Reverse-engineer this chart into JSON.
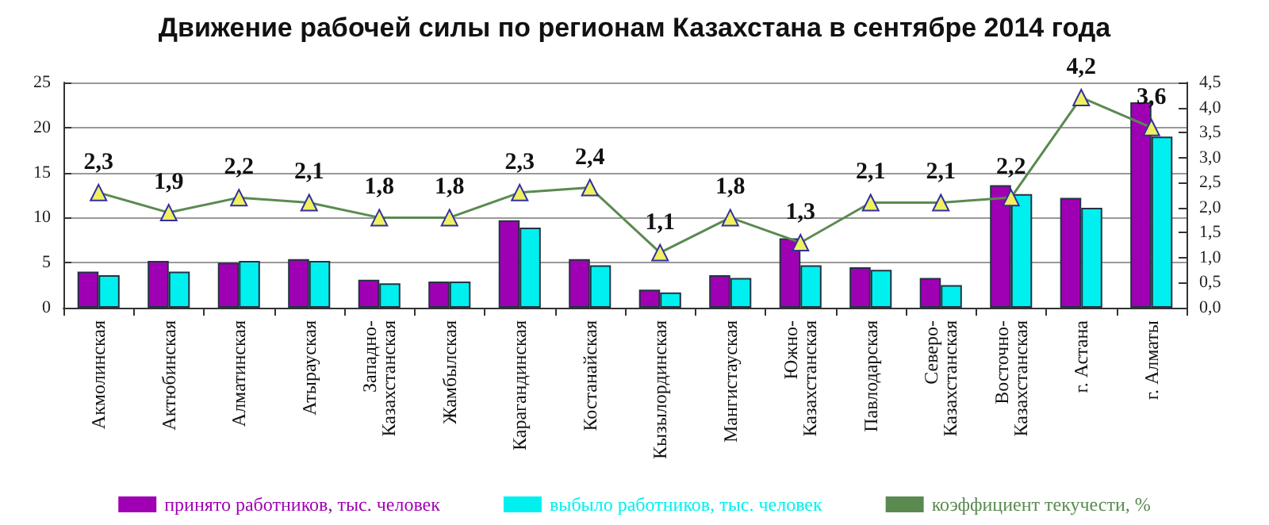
{
  "chart_data": {
    "type": "bar",
    "title": "Движение рабочей силы по регионам Казахстана в сентябре 2014 года",
    "categories": [
      "Акмолинская",
      "Актюбинская",
      "Алматинская",
      "Атырауская",
      "Западно-Казахстанская",
      "Жамбылская",
      "Карагандинская",
      "Костанайская",
      "Кызылординская",
      "Мангистауская",
      "Южно-Казахстанская",
      "Павлодарская",
      "Северо-Казахстанская",
      "Восточно-Казахстанская",
      "г. Астана",
      "г. Алматы"
    ],
    "series": [
      {
        "name": "принято работников, тыс. человек",
        "color": "#a000b4",
        "values": [
          4.0,
          5.2,
          5.0,
          5.4,
          3.1,
          2.9,
          9.7,
          5.4,
          2.0,
          3.6,
          7.7,
          4.5,
          3.3,
          13.6,
          12.2,
          22.8
        ]
      },
      {
        "name": "выбыло работников, тыс. человек",
        "color": "#00f0f0",
        "values": [
          3.6,
          4.0,
          5.2,
          5.2,
          2.7,
          2.9,
          8.9,
          4.7,
          1.7,
          3.3,
          4.7,
          4.2,
          2.5,
          12.6,
          11.1,
          19.0
        ]
      },
      {
        "name": "коэффициент текучести, %",
        "type": "line",
        "axis": "y2",
        "color": "#5a8a50",
        "marker": "triangle",
        "values": [
          2.3,
          1.9,
          2.2,
          2.1,
          1.8,
          1.8,
          2.3,
          2.4,
          1.1,
          1.8,
          1.3,
          2.1,
          2.1,
          2.2,
          4.2,
          3.6
        ],
        "value_labels": [
          "2,3",
          "1,9",
          "2,2",
          "2,1",
          "1,8",
          "1,8",
          "2,3",
          "2,4",
          "1,1",
          "1,8",
          "1,3",
          "2,1",
          "2,1",
          "2,2",
          "4,2",
          "3,6"
        ]
      }
    ],
    "ylim": [
      0,
      25
    ],
    "yticks": [
      0,
      5,
      10,
      15,
      20,
      25
    ],
    "y2lim": [
      0,
      4.5
    ],
    "y2ticks": [
      {
        "value": 0,
        "label": "0,0"
      },
      {
        "value": 0.5,
        "label": "0,5"
      },
      {
        "value": 1,
        "label": "1,0"
      },
      {
        "value": 1.5,
        "label": "1,5"
      },
      {
        "value": 2,
        "label": "2,0"
      },
      {
        "value": 2.5,
        "label": "2,5"
      },
      {
        "value": 3,
        "label": "3,0"
      },
      {
        "value": 3.5,
        "label": "3,5"
      },
      {
        "value": 4,
        "label": "4,0"
      },
      {
        "value": 4.5,
        "label": "4,5"
      }
    ],
    "grid": "y",
    "legend": "bottom"
  }
}
